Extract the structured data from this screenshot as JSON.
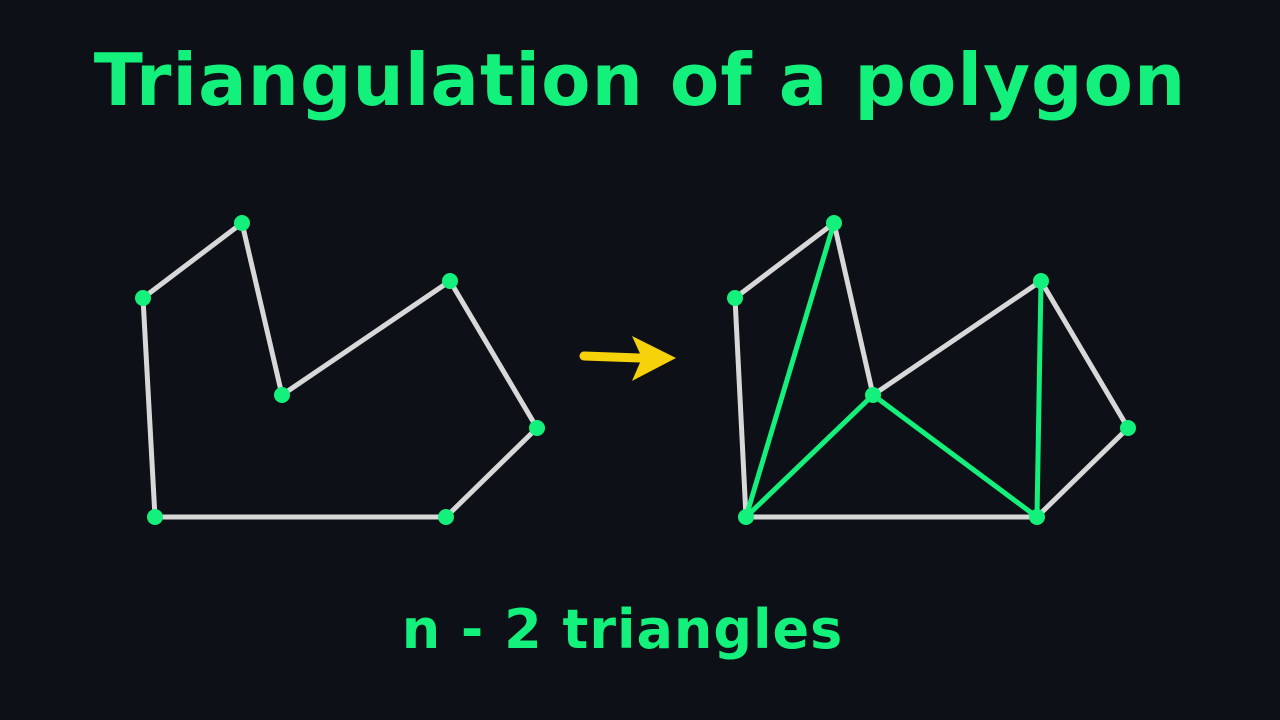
{
  "title": "Triangulation of a polygon",
  "caption": "n - 2 triangles",
  "colors": {
    "background": "#0d1016",
    "accent": "#14f07c",
    "edge": "#d8d8d8",
    "diagonal": "#14f07c",
    "arrow": "#f6d20a"
  },
  "polygon": {
    "vertex_count": 7
  }
}
